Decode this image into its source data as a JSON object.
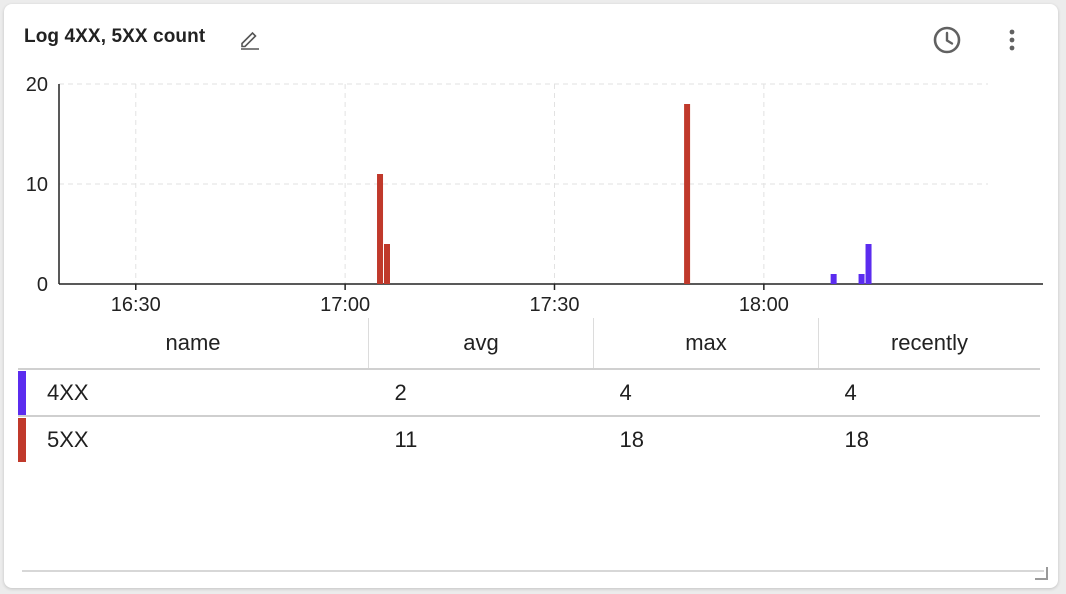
{
  "panel": {
    "title": "Log 4XX, 5XX count",
    "icons": [
      "edit-icon",
      "clock-icon",
      "more-vert-icon"
    ]
  },
  "chart_data": {
    "type": "bar",
    "x_type": "time",
    "x_ticks": [
      "16:30",
      "17:00",
      "17:30",
      "18:00"
    ],
    "x_range": [
      "16:19",
      "18:40"
    ],
    "ylim": [
      0,
      20
    ],
    "y_ticks": [
      0,
      10,
      20
    ],
    "grid": true,
    "series": [
      {
        "name": "4XX",
        "color": "#5b2cef",
        "points": [
          {
            "x": "18:10",
            "y": 1
          },
          {
            "x": "18:14",
            "y": 1
          },
          {
            "x": "18:15",
            "y": 4
          }
        ]
      },
      {
        "name": "5XX",
        "color": "#c0392b",
        "points": [
          {
            "x": "17:05",
            "y": 11
          },
          {
            "x": "17:06",
            "y": 4
          },
          {
            "x": "17:49",
            "y": 18
          }
        ]
      }
    ]
  },
  "legend": {
    "columns": [
      "name",
      "avg",
      "max",
      "recently"
    ],
    "rows": [
      {
        "name": "4XX",
        "avg": "2",
        "max": "4",
        "recently": "4",
        "color": "#5b2cef"
      },
      {
        "name": "5XX",
        "avg": "11",
        "max": "18",
        "recently": "18",
        "color": "#c0392b"
      }
    ]
  }
}
